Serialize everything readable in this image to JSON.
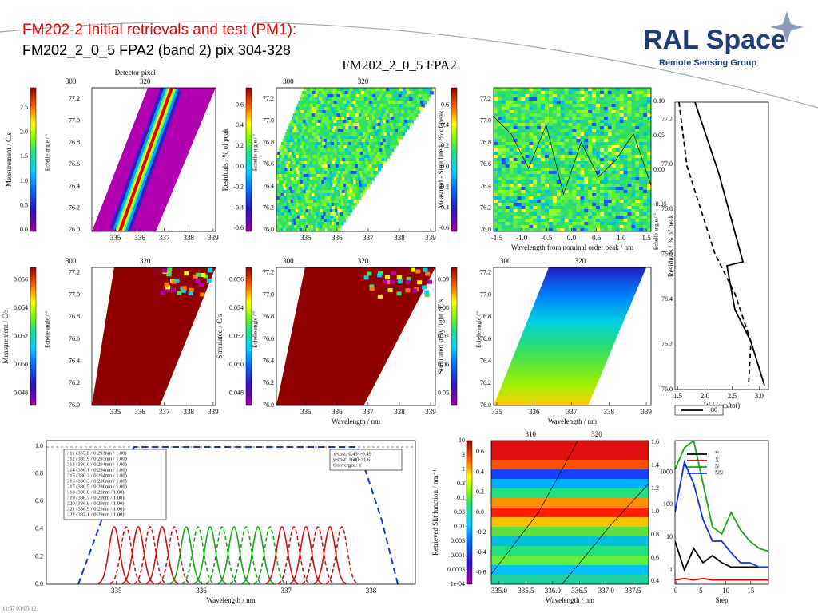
{
  "header": {
    "title": "FM202-2 Initial retrievals and test (PM1):",
    "subtitle": "FM202_2_0_5 FPA2 (band 2) pix 304-328",
    "logo": "RAL Space",
    "logo_tagline": "Remote Sensing Group",
    "figure_title": "FM202_2_0_5 FPA2"
  },
  "panels": [
    {
      "ylabel": "Measurement / C/s",
      "angle_label": "Echelle angle / °",
      "cbar_ticks": [
        "0.0",
        "0.5",
        "1.0",
        "1.5",
        "2.0",
        "2.5"
      ],
      "yticks": [
        "76.0",
        "76.2",
        "76.4",
        "76.6",
        "76.8",
        "77.0",
        "77.2"
      ],
      "xticks": [
        "335",
        "336",
        "337",
        "338",
        "339"
      ],
      "top_title": "Detector pixel",
      "top_ticks": [
        "300",
        "320"
      ]
    },
    {
      "ylabel": "Residuals / % of peak",
      "angle_label": "Echelle angle / °",
      "cbar_ticks": [
        "-0.6",
        "-0.4",
        "-0.2",
        "0.0",
        "0.2",
        "0.4",
        "0.6"
      ],
      "yticks": [
        "76.0",
        "76.2",
        "76.4",
        "76.6",
        "76.8",
        "77.0",
        "77.2"
      ],
      "xticks": [
        "335",
        "336",
        "337",
        "338",
        "339"
      ],
      "top_ticks": [
        "300",
        "320"
      ]
    },
    {
      "ylabel": "Measured - Simulated / % of peak",
      "cbar_ticks": [
        "-0.6",
        "-0.4",
        "-0.2",
        "0.0",
        "0.2",
        "0.4",
        "0.6"
      ],
      "yticks": [
        "76.0",
        "76.2",
        "76.4",
        "76.6",
        "76.8",
        "77.0",
        "77.2"
      ],
      "xticks": [
        "-1.5",
        "-1.0",
        "-0.5",
        "0.0",
        "0.5",
        "1.0",
        "1.5"
      ],
      "xlabel": "Wavelength from nominal order peak / nm",
      "right_ticks": [
        "0.10",
        "0.05",
        "0.00",
        "-0.05"
      ]
    },
    {
      "ylabel": "Residuals / % of peak",
      "angle_label": "Echelle angle / °",
      "yticks": [
        "76.0",
        "76.2",
        "76.4",
        "76.6",
        "76.8",
        "77.0",
        "77.2"
      ],
      "xticks": [
        "1.5",
        "2.0",
        "2.5",
        "3.0"
      ],
      "xlabel": "W / (μm/tot)",
      "legend": "80"
    },
    {
      "ylabel": "Measurement / C/s",
      "angle_label": "Echelle angle / °",
      "cbar_ticks": [
        "0.048",
        "0.050",
        "0.052",
        "0.054",
        "0.056"
      ],
      "yticks": [
        "76.0",
        "76.2",
        "76.4",
        "76.6",
        "76.8",
        "77.0",
        "77.2"
      ],
      "xticks": [
        "335",
        "336",
        "337",
        "338",
        "339"
      ],
      "top_ticks": [
        "300",
        "320"
      ]
    },
    {
      "ylabel": "Simulated / C/s",
      "angle_label": "Echelle angle / °",
      "cbar_ticks": [
        "0.048",
        "0.050",
        "0.052",
        "0.054",
        "0.056"
      ],
      "yticks": [
        "76.0",
        "76.2",
        "76.4",
        "76.6",
        "76.8",
        "77.0",
        "77.2"
      ],
      "xticks": [
        "335",
        "336",
        "337",
        "338",
        "339"
      ],
      "xlabel": "Wavelength / nm",
      "top_ticks": [
        "300",
        "320"
      ]
    },
    {
      "ylabel": "Simulated stray light / C/s",
      "angle_label": "Echelle angle / °",
      "cbar_ticks": [
        "0.05",
        "0.06",
        "0.07",
        "0.08",
        "0.09"
      ],
      "yticks": [
        "76.0",
        "76.2",
        "76.4",
        "76.6",
        "76.8",
        "77.0",
        "77.2"
      ],
      "xticks": [
        "335",
        "336",
        "337",
        "338",
        "339"
      ],
      "xlabel": "Wavelength / nm",
      "top_ticks": [
        "300",
        "320"
      ]
    },
    {
      "yticks": [
        "0.0",
        "0.2",
        "0.4",
        "0.6",
        "0.8",
        "1.0"
      ],
      "xticks": [
        "335",
        "336",
        "337",
        "338"
      ],
      "xlabel": "Wavelength / nm",
      "legend_lines": [
        "311 (335.8 / 0.293nm / 1.00)",
        "312 (335.9 / 0.293nm / 1.00)",
        "313 (336.0 / 0.294nm / 1.00)",
        "314 (336.1 / 0.294nm / 1.00)",
        "315 (336.2 / 0.294nm / 1.00)",
        "316 (336.3 / 0.286nm / 1.00)",
        "317 (336.5 / 0.286nm / 1.00)",
        "318 (336.6 / 0.29nm / 1.00)",
        "319 (336.7 / 0.29nm / 1.00)",
        "320 (336.8 / 0.29nm / 1.00)",
        "321 (336.9 / 0.29nm / 1.00)",
        "322 (337.1 / 0.29nm / 1.00)"
      ],
      "cost_lines": [
        "x-cost: 0.43->0.49",
        "y-cost: 1600->1.6",
        "Converged: Y"
      ]
    },
    {
      "ylabel": "Retrieved Slit function / nm⁻¹",
      "yticks": [
        "1e-04",
        "0.0003",
        "0.001",
        "0.003",
        "0.01",
        "0.03",
        "0.1",
        "0.3",
        "1",
        "3",
        "10"
      ],
      "cbar_ticks": [
        "-0.6",
        "-0.4",
        "-0.2",
        "0.0",
        "0.2",
        "0.4",
        "0.6"
      ],
      "xticks": [
        "335.0",
        "335.5",
        "336.0",
        "336.5",
        "337.0",
        "337.5"
      ],
      "xlabel": "Wavelength / nm",
      "top_ticks": [
        "310",
        "320"
      ],
      "right_ticks": [
        "0.4",
        "0.6",
        "0.8",
        "1.0",
        "1.2",
        "1.4",
        "1.6"
      ]
    },
    {
      "yticks": [
        "1",
        "10",
        "100",
        "1000"
      ],
      "xticks": [
        "0",
        "5",
        "10",
        "15"
      ],
      "xlabel": "Step",
      "legend": [
        {
          "name": "Y",
          "color": "#000000"
        },
        {
          "name": "X",
          "color": "#cc0000"
        },
        {
          "name": "N",
          "color": "#11aa11"
        },
        {
          "name": "NN",
          "color": "#1133dd"
        }
      ]
    }
  ],
  "footer": "11:57 03/05/12"
}
